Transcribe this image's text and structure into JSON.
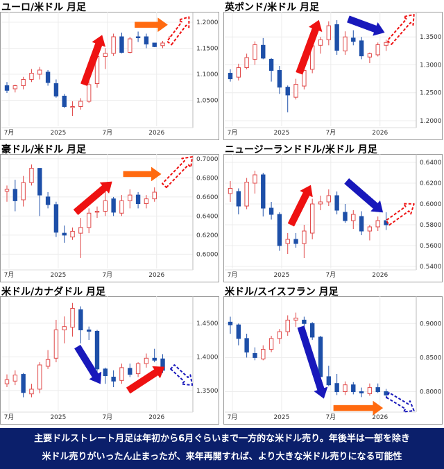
{
  "chart_data": [
    {
      "type": "candlestick",
      "title": "ユーロ/米ドル 月足",
      "x_ticks": [
        "7月",
        "2025",
        "7月",
        "2026"
      ],
      "y_ticks": [
        "1.2000",
        "1.1500",
        "1.1000",
        "1.0500"
      ],
      "y_tick_values": [
        1.2,
        1.15,
        1.1,
        1.05
      ],
      "ylim": [
        1.0,
        1.22
      ],
      "candles": [
        {
          "o": 1.078,
          "h": 1.085,
          "l": 1.064,
          "c": 1.069
        },
        {
          "o": 1.072,
          "h": 1.08,
          "l": 1.065,
          "c": 1.078
        },
        {
          "o": 1.078,
          "h": 1.095,
          "l": 1.071,
          "c": 1.09
        },
        {
          "o": 1.09,
          "h": 1.11,
          "l": 1.085,
          "c": 1.102
        },
        {
          "o": 1.1,
          "h": 1.114,
          "l": 1.09,
          "c": 1.108
        },
        {
          "o": 1.104,
          "h": 1.108,
          "l": 1.078,
          "c": 1.084
        },
        {
          "o": 1.082,
          "h": 1.09,
          "l": 1.055,
          "c": 1.058
        },
        {
          "o": 1.058,
          "h": 1.062,
          "l": 1.035,
          "c": 1.038
        },
        {
          "o": 1.036,
          "h": 1.048,
          "l": 1.02,
          "c": 1.038
        },
        {
          "o": 1.038,
          "h": 1.054,
          "l": 1.032,
          "c": 1.048
        },
        {
          "o": 1.048,
          "h": 1.095,
          "l": 1.045,
          "c": 1.08
        },
        {
          "o": 1.082,
          "h": 1.145,
          "l": 1.074,
          "c": 1.134
        },
        {
          "o": 1.134,
          "h": 1.15,
          "l": 1.11,
          "c": 1.14
        },
        {
          "o": 1.14,
          "h": 1.178,
          "l": 1.135,
          "c": 1.172
        },
        {
          "o": 1.172,
          "h": 1.18,
          "l": 1.14,
          "c": 1.142
        },
        {
          "o": 1.142,
          "h": 1.172,
          "l": 1.14,
          "c": 1.168
        },
        {
          "o": 1.172,
          "h": 1.182,
          "l": 1.162,
          "c": 1.17
        },
        {
          "o": 1.172,
          "h": 1.178,
          "l": 1.15,
          "c": 1.158
        },
        {
          "o": 1.16,
          "h": 1.16,
          "l": 1.152,
          "c": 1.153
        },
        {
          "o": 1.155,
          "h": 1.164,
          "l": 1.15,
          "c": 1.16
        },
        {
          "o": 1.162,
          "h": 1.175,
          "l": 1.157,
          "c": 1.172
        }
      ],
      "arrows": [
        {
          "kind": "solid",
          "color": "red",
          "from": [
            9.4,
            1.08
          ],
          "to": [
            11.6,
            1.175
          ]
        },
        {
          "kind": "solid",
          "color": "orange",
          "from": [
            15.6,
            1.195
          ],
          "to": [
            19.6,
            1.195
          ]
        },
        {
          "kind": "dashed",
          "color": "red",
          "from": [
            19.8,
            1.16
          ],
          "to": [
            22.2,
            1.21
          ]
        }
      ]
    },
    {
      "type": "candlestick",
      "title": "英ポンド/米ドル 月足",
      "x_ticks": [
        "7月",
        "2025",
        "7月",
        "2026"
      ],
      "y_ticks": [
        "1.3500",
        "1.3000",
        "1.2500",
        "1.2000"
      ],
      "y_tick_values": [
        1.35,
        1.3,
        1.25,
        1.2
      ],
      "ylim": [
        1.19,
        1.395
      ],
      "candles": [
        {
          "o": 1.285,
          "h": 1.292,
          "l": 1.27,
          "c": 1.275
        },
        {
          "o": 1.278,
          "h": 1.302,
          "l": 1.272,
          "c": 1.295
        },
        {
          "o": 1.295,
          "h": 1.32,
          "l": 1.292,
          "c": 1.313
        },
        {
          "o": 1.31,
          "h": 1.342,
          "l": 1.3,
          "c": 1.336
        },
        {
          "o": 1.335,
          "h": 1.348,
          "l": 1.31,
          "c": 1.312
        },
        {
          "o": 1.31,
          "h": 1.312,
          "l": 1.27,
          "c": 1.29
        },
        {
          "o": 1.29,
          "h": 1.298,
          "l": 1.248,
          "c": 1.26
        },
        {
          "o": 1.26,
          "h": 1.263,
          "l": 1.215,
          "c": 1.246
        },
        {
          "o": 1.242,
          "h": 1.275,
          "l": 1.238,
          "c": 1.265
        },
        {
          "o": 1.262,
          "h": 1.305,
          "l": 1.256,
          "c": 1.29
        },
        {
          "o": 1.292,
          "h": 1.352,
          "l": 1.285,
          "c": 1.334
        },
        {
          "o": 1.335,
          "h": 1.35,
          "l": 1.32,
          "c": 1.345
        },
        {
          "o": 1.345,
          "h": 1.378,
          "l": 1.335,
          "c": 1.37
        },
        {
          "o": 1.372,
          "h": 1.38,
          "l": 1.318,
          "c": 1.326
        },
        {
          "o": 1.325,
          "h": 1.36,
          "l": 1.318,
          "c": 1.35
        },
        {
          "o": 1.348,
          "h": 1.362,
          "l": 1.335,
          "c": 1.342
        },
        {
          "o": 1.343,
          "h": 1.35,
          "l": 1.31,
          "c": 1.316
        },
        {
          "o": 1.314,
          "h": 1.322,
          "l": 1.303,
          "c": 1.32
        },
        {
          "o": 1.318,
          "h": 1.34,
          "l": 1.315,
          "c": 1.336
        },
        {
          "o": 1.335,
          "h": 1.345,
          "l": 1.325,
          "c": 1.34
        }
      ],
      "arrows": [
        {
          "kind": "solid",
          "color": "red",
          "from": [
            8.4,
            1.285
          ],
          "to": [
            10.8,
            1.38
          ]
        },
        {
          "kind": "solid",
          "color": "blue",
          "from": [
            14.4,
            1.382
          ],
          "to": [
            18.8,
            1.358
          ]
        },
        {
          "kind": "dashed",
          "color": "red",
          "from": [
            19.4,
            1.34
          ],
          "to": [
            22.4,
            1.39
          ]
        }
      ]
    },
    {
      "type": "candlestick",
      "title": "豪ドル/米ドル 月足",
      "x_ticks": [
        "7月",
        "2025",
        "7月",
        "2026"
      ],
      "y_ticks": [
        "0.7000",
        "0.6800",
        "0.6600",
        "0.6400",
        "0.6200",
        "0.6000"
      ],
      "y_tick_values": [
        0.7,
        0.68,
        0.66,
        0.64,
        0.62,
        0.6
      ],
      "ylim": [
        0.585,
        0.705
      ],
      "candles": [
        {
          "o": 0.666,
          "h": 0.672,
          "l": 0.655,
          "c": 0.668
        },
        {
          "o": 0.668,
          "h": 0.678,
          "l": 0.645,
          "c": 0.656
        },
        {
          "o": 0.657,
          "h": 0.682,
          "l": 0.65,
          "c": 0.675
        },
        {
          "o": 0.675,
          "h": 0.694,
          "l": 0.672,
          "c": 0.69
        },
        {
          "o": 0.69,
          "h": 0.69,
          "l": 0.64,
          "c": 0.662
        },
        {
          "o": 0.66,
          "h": 0.665,
          "l": 0.648,
          "c": 0.652
        },
        {
          "o": 0.652,
          "h": 0.655,
          "l": 0.618,
          "c": 0.623
        },
        {
          "o": 0.622,
          "h": 0.63,
          "l": 0.612,
          "c": 0.62
        },
        {
          "o": 0.618,
          "h": 0.628,
          "l": 0.615,
          "c": 0.624
        },
        {
          "o": 0.622,
          "h": 0.638,
          "l": 0.596,
          "c": 0.628
        },
        {
          "o": 0.628,
          "h": 0.648,
          "l": 0.622,
          "c": 0.643
        },
        {
          "o": 0.644,
          "h": 0.65,
          "l": 0.638,
          "c": 0.645
        },
        {
          "o": 0.645,
          "h": 0.665,
          "l": 0.64,
          "c": 0.656
        },
        {
          "o": 0.658,
          "h": 0.66,
          "l": 0.64,
          "c": 0.644
        },
        {
          "o": 0.643,
          "h": 0.662,
          "l": 0.64,
          "c": 0.656
        },
        {
          "o": 0.656,
          "h": 0.668,
          "l": 0.648,
          "c": 0.662
        },
        {
          "o": 0.662,
          "h": 0.665,
          "l": 0.648,
          "c": 0.653
        },
        {
          "o": 0.653,
          "h": 0.662,
          "l": 0.648,
          "c": 0.658
        },
        {
          "o": 0.658,
          "h": 0.67,
          "l": 0.655,
          "c": 0.665
        }
      ],
      "arrows": [
        {
          "kind": "solid",
          "color": "red",
          "from": [
            8.4,
            0.644
          ],
          "to": [
            12.8,
            0.676
          ]
        },
        {
          "kind": "solid",
          "color": "orange",
          "from": [
            14.2,
            0.684
          ],
          "to": [
            18.8,
            0.684
          ]
        },
        {
          "kind": "dashed",
          "color": "red",
          "from": [
            19.2,
            0.672
          ],
          "to": [
            22.6,
            0.702
          ]
        }
      ]
    },
    {
      "type": "candlestick",
      "title": "ニュージーランドドル/米ドル 月足",
      "x_ticks": [
        "7月",
        "2025",
        "7月",
        "2026"
      ],
      "y_ticks": [
        "0.6400",
        "0.6200",
        "0.6000",
        "0.5800",
        "0.5600",
        "0.5400"
      ],
      "y_tick_values": [
        0.64,
        0.62,
        0.6,
        0.58,
        0.56,
        0.54
      ],
      "ylim": [
        0.538,
        0.648
      ],
      "candles": [
        {
          "o": 0.61,
          "h": 0.622,
          "l": 0.602,
          "c": 0.615
        },
        {
          "o": 0.612,
          "h": 0.615,
          "l": 0.59,
          "c": 0.598
        },
        {
          "o": 0.598,
          "h": 0.625,
          "l": 0.595,
          "c": 0.621
        },
        {
          "o": 0.62,
          "h": 0.632,
          "l": 0.61,
          "c": 0.628
        },
        {
          "o": 0.628,
          "h": 0.63,
          "l": 0.588,
          "c": 0.596
        },
        {
          "o": 0.596,
          "h": 0.602,
          "l": 0.585,
          "c": 0.59
        },
        {
          "o": 0.59,
          "h": 0.592,
          "l": 0.555,
          "c": 0.56
        },
        {
          "o": 0.562,
          "h": 0.572,
          "l": 0.552,
          "c": 0.566
        },
        {
          "o": 0.566,
          "h": 0.572,
          "l": 0.558,
          "c": 0.562
        },
        {
          "o": 0.562,
          "h": 0.58,
          "l": 0.548,
          "c": 0.574
        },
        {
          "o": 0.572,
          "h": 0.605,
          "l": 0.566,
          "c": 0.6
        },
        {
          "o": 0.6,
          "h": 0.608,
          "l": 0.594,
          "c": 0.602
        },
        {
          "o": 0.602,
          "h": 0.614,
          "l": 0.598,
          "c": 0.608
        },
        {
          "o": 0.608,
          "h": 0.612,
          "l": 0.59,
          "c": 0.594
        },
        {
          "o": 0.592,
          "h": 0.6,
          "l": 0.582,
          "c": 0.584
        },
        {
          "o": 0.584,
          "h": 0.594,
          "l": 0.576,
          "c": 0.59
        },
        {
          "o": 0.588,
          "h": 0.593,
          "l": 0.57,
          "c": 0.574
        },
        {
          "o": 0.574,
          "h": 0.58,
          "l": 0.565,
          "c": 0.578
        },
        {
          "o": 0.578,
          "h": 0.588,
          "l": 0.574,
          "c": 0.584
        },
        {
          "o": 0.584,
          "h": 0.592,
          "l": 0.575,
          "c": 0.58
        }
      ],
      "arrows": [
        {
          "kind": "solid",
          "color": "red",
          "from": [
            7.4,
            0.58
          ],
          "to": [
            9.8,
            0.618
          ]
        },
        {
          "kind": "solid",
          "color": "blue",
          "from": [
            14.2,
            0.622
          ],
          "to": [
            18.6,
            0.592
          ]
        },
        {
          "kind": "dashed",
          "color": "red",
          "from": [
            19.2,
            0.582
          ],
          "to": [
            22.4,
            0.6
          ]
        }
      ]
    },
    {
      "type": "candlestick",
      "title": "米ドル/カナダドル 月足",
      "x_ticks": [
        "7月",
        "2025",
        "7月",
        "2026"
      ],
      "y_ticks": [
        "1.4500",
        "1.4000",
        "1.3500"
      ],
      "y_tick_values": [
        1.45,
        1.4,
        1.35
      ],
      "ylim": [
        1.32,
        1.49
      ],
      "candles": [
        {
          "o": 1.36,
          "h": 1.374,
          "l": 1.355,
          "c": 1.366
        },
        {
          "o": 1.364,
          "h": 1.38,
          "l": 1.358,
          "c": 1.373
        },
        {
          "o": 1.374,
          "h": 1.376,
          "l": 1.34,
          "c": 1.347
        },
        {
          "o": 1.345,
          "h": 1.36,
          "l": 1.34,
          "c": 1.352
        },
        {
          "o": 1.352,
          "h": 1.392,
          "l": 1.346,
          "c": 1.388
        },
        {
          "o": 1.386,
          "h": 1.41,
          "l": 1.382,
          "c": 1.396
        },
        {
          "o": 1.398,
          "h": 1.455,
          "l": 1.392,
          "c": 1.44
        },
        {
          "o": 1.44,
          "h": 1.46,
          "l": 1.42,
          "c": 1.445
        },
        {
          "o": 1.444,
          "h": 1.48,
          "l": 1.43,
          "c": 1.472
        },
        {
          "o": 1.47,
          "h": 1.475,
          "l": 1.42,
          "c": 1.44
        },
        {
          "o": 1.44,
          "h": 1.445,
          "l": 1.425,
          "c": 1.438
        },
        {
          "o": 1.438,
          "h": 1.44,
          "l": 1.37,
          "c": 1.382
        },
        {
          "o": 1.382,
          "h": 1.384,
          "l": 1.36,
          "c": 1.372
        },
        {
          "o": 1.37,
          "h": 1.38,
          "l": 1.355,
          "c": 1.364
        },
        {
          "o": 1.365,
          "h": 1.39,
          "l": 1.36,
          "c": 1.384
        },
        {
          "o": 1.383,
          "h": 1.39,
          "l": 1.37,
          "c": 1.374
        },
        {
          "o": 1.375,
          "h": 1.392,
          "l": 1.37,
          "c": 1.39
        },
        {
          "o": 1.39,
          "h": 1.405,
          "l": 1.384,
          "c": 1.398
        },
        {
          "o": 1.398,
          "h": 1.412,
          "l": 1.392,
          "c": 1.395
        },
        {
          "o": 1.397,
          "h": 1.404,
          "l": 1.376,
          "c": 1.38
        }
      ],
      "arrows": [
        {
          "kind": "solid",
          "color": "blue",
          "from": [
            8.6,
            1.415
          ],
          "to": [
            11.4,
            1.36
          ]
        },
        {
          "kind": "solid",
          "color": "red",
          "from": [
            14.8,
            1.35
          ],
          "to": [
            19.2,
            1.385
          ]
        },
        {
          "kind": "dashed",
          "color": "blue",
          "from": [
            20.2,
            1.385
          ],
          "to": [
            22.6,
            1.358
          ]
        }
      ]
    },
    {
      "type": "candlestick",
      "title": "米ドル/スイスフラン 月足",
      "x_ticks": [
        "7月",
        "2025",
        "7月",
        "2026"
      ],
      "y_ticks": [
        "0.9000",
        "0.8500",
        "0.8000"
      ],
      "y_tick_values": [
        0.9,
        0.85,
        0.8
      ],
      "ylim": [
        0.772,
        0.94
      ],
      "candles": [
        {
          "o": 0.902,
          "h": 0.91,
          "l": 0.885,
          "c": 0.898
        },
        {
          "o": 0.898,
          "h": 0.9,
          "l": 0.868,
          "c": 0.878
        },
        {
          "o": 0.878,
          "h": 0.885,
          "l": 0.85,
          "c": 0.858
        },
        {
          "o": 0.856,
          "h": 0.865,
          "l": 0.846,
          "c": 0.85
        },
        {
          "o": 0.848,
          "h": 0.868,
          "l": 0.846,
          "c": 0.862
        },
        {
          "o": 0.862,
          "h": 0.882,
          "l": 0.858,
          "c": 0.878
        },
        {
          "o": 0.878,
          "h": 0.892,
          "l": 0.87,
          "c": 0.888
        },
        {
          "o": 0.888,
          "h": 0.912,
          "l": 0.882,
          "c": 0.905
        },
        {
          "o": 0.905,
          "h": 0.916,
          "l": 0.895,
          "c": 0.908
        },
        {
          "o": 0.905,
          "h": 0.91,
          "l": 0.88,
          "c": 0.9
        },
        {
          "o": 0.9,
          "h": 0.902,
          "l": 0.876,
          "c": 0.88
        },
        {
          "o": 0.88,
          "h": 0.882,
          "l": 0.81,
          "c": 0.822
        },
        {
          "o": 0.822,
          "h": 0.838,
          "l": 0.808,
          "c": 0.81
        },
        {
          "o": 0.812,
          "h": 0.826,
          "l": 0.795,
          "c": 0.8
        },
        {
          "o": 0.8,
          "h": 0.815,
          "l": 0.795,
          "c": 0.81
        },
        {
          "o": 0.81,
          "h": 0.814,
          "l": 0.796,
          "c": 0.8
        },
        {
          "o": 0.8,
          "h": 0.806,
          "l": 0.792,
          "c": 0.798
        },
        {
          "o": 0.797,
          "h": 0.812,
          "l": 0.794,
          "c": 0.806
        },
        {
          "o": 0.806,
          "h": 0.812,
          "l": 0.798,
          "c": 0.8
        },
        {
          "o": 0.8,
          "h": 0.804,
          "l": 0.79,
          "c": 0.795
        }
      ],
      "arrows": [
        {
          "kind": "solid",
          "color": "blue",
          "from": [
            8.6,
            0.895
          ],
          "to": [
            11.4,
            0.79
          ]
        },
        {
          "kind": "solid",
          "color": "orange",
          "from": [
            12.6,
            0.776
          ],
          "to": [
            18.6,
            0.776
          ]
        },
        {
          "kind": "dashed",
          "color": "blue",
          "from": [
            19.2,
            0.795
          ],
          "to": [
            22.4,
            0.772
          ]
        }
      ]
    }
  ],
  "colors": {
    "up": "#e04848",
    "down": "#1d4fa8",
    "arrow_red": "#ee1111",
    "arrow_blue": "#1818bb",
    "arrow_orange": "#ff6a10",
    "footer_bg": "#0b1f6b"
  },
  "footer": {
    "line1": "主要ドルストレート月足は年初から6月ぐらいまで一方的な米ドル売り。年後半は一部を除き",
    "line2": "米ドル売りがいったん止まったが、来年再開すれば、より大きな米ドル売りになる可能性"
  }
}
